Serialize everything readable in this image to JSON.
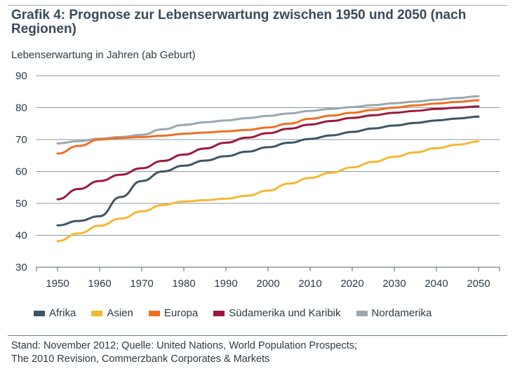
{
  "header": {
    "title": "Grafik 4: Prognose zur Lebenserwartung zwischen 1950 und 2050 (nach Regionen)",
    "subtitle": "Lebenserwartung in Jahren (ab Geburt)"
  },
  "footer": {
    "source_line1": "Stand: November 2012; Quelle: United Nations, World Population Prospects;",
    "source_line2": "The 2010 Revision, Commerzbank Corporates & Markets"
  },
  "chart_data": {
    "type": "line",
    "title": "Grafik 4: Prognose zur Lebenserwartung zwischen 1950 und 2050 (nach Regionen)",
    "ylabel": "Lebenserwartung in Jahren (ab Geburt)",
    "xlabel": "",
    "ylim": [
      30,
      90
    ],
    "yticks": [
      30,
      40,
      50,
      60,
      70,
      80,
      90
    ],
    "x": [
      1950,
      1955,
      1960,
      1965,
      1970,
      1975,
      1980,
      1985,
      1990,
      1995,
      2000,
      2005,
      2010,
      2015,
      2020,
      2025,
      2030,
      2035,
      2040,
      2045,
      2050
    ],
    "xticks": [
      "1950",
      "1960",
      "1970",
      "1980",
      "1990",
      "2000",
      "2010",
      "2020",
      "2030",
      "2040",
      "2050"
    ],
    "grid": "horizontal",
    "legend_position": "bottom",
    "series": [
      {
        "name": "Afrika",
        "color": "#3d5566",
        "values": [
          43.1,
          44.5,
          46.0,
          52.0,
          57.0,
          60.0,
          61.8,
          63.4,
          64.8,
          66.2,
          67.6,
          69.0,
          70.2,
          71.3,
          72.4,
          73.5,
          74.4,
          75.2,
          76.0,
          76.6,
          77.2
        ]
      },
      {
        "name": "Asien",
        "color": "#f7b731",
        "values": [
          38.2,
          40.6,
          43.0,
          45.2,
          47.5,
          49.5,
          50.6,
          51.0,
          51.5,
          52.4,
          54.0,
          56.2,
          58.0,
          59.6,
          61.3,
          63.0,
          64.6,
          66.0,
          67.3,
          68.4,
          69.4
        ]
      },
      {
        "name": "Europa",
        "color": "#ee7123",
        "values": [
          65.6,
          68.0,
          70.0,
          70.5,
          70.8,
          71.2,
          71.8,
          72.2,
          72.6,
          73.0,
          73.8,
          75.0,
          76.5,
          77.5,
          78.4,
          79.3,
          80.0,
          80.7,
          81.3,
          81.8,
          82.3
        ]
      },
      {
        "name": "Südamerika und Karibik",
        "color": "#9c1a3c",
        "values": [
          51.3,
          54.5,
          57.0,
          59.0,
          61.0,
          63.3,
          65.3,
          67.2,
          69.0,
          70.6,
          72.0,
          73.4,
          74.7,
          75.8,
          76.8,
          77.6,
          78.4,
          79.0,
          79.6,
          80.0,
          80.4
        ]
      },
      {
        "name": "Nordamerika",
        "color": "#9aa8b2",
        "values": [
          68.8,
          69.5,
          70.3,
          70.8,
          71.5,
          73.2,
          74.6,
          75.4,
          76.0,
          76.7,
          77.4,
          78.2,
          79.0,
          79.6,
          80.2,
          80.8,
          81.4,
          81.9,
          82.5,
          83.0,
          83.6
        ]
      }
    ]
  }
}
